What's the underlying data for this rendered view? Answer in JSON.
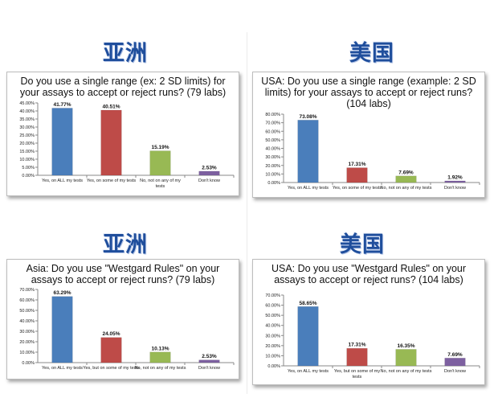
{
  "panels": [
    {
      "heading": "亚洲",
      "chart_title": "Do you use a single range (ex: 2 SD limits) for your assays to accept or reject runs? (79 labs)"
    },
    {
      "heading": "美国",
      "chart_title": "USA: Do you use a single range (example: 2 SD limits) for your assays to accept or reject runs? (104 labs)"
    },
    {
      "heading": "亚洲",
      "chart_title": "Asia: Do you use \"Westgard Rules\" on your assays to accept or reject runs? (79 labs)"
    },
    {
      "heading": "美国",
      "chart_title": "USA: Do you use \"Westgard Rules\" on your assays to accept or reject runs? (104 labs)"
    }
  ],
  "chart_data": [
    {
      "type": "bar",
      "title": "Do you use a single range (ex: 2 SD limits) for your assays to accept or reject runs? (79 labs)",
      "categories": [
        "Yes, on ALL my tests",
        "Yes, on some of my tests",
        "No, not on any of my tests",
        "Don't know"
      ],
      "values": [
        41.77,
        40.51,
        15.19,
        2.53
      ],
      "value_labels": [
        "41.77%",
        "40.51%",
        "15.19%",
        "2.53%"
      ],
      "ylim": [
        0,
        45
      ],
      "yticks": [
        "0.00%",
        "5.00%",
        "10.00%",
        "15.00%",
        "20.00%",
        "25.00%",
        "30.00%",
        "35.00%",
        "40.00%",
        "45.00%"
      ],
      "colors": [
        "#4a7ebb",
        "#be4b48",
        "#98b954",
        "#7d60a0"
      ],
      "grid": false,
      "legend": "none"
    },
    {
      "type": "bar",
      "title": "USA: Do you use a single range (example: 2 SD limits) for your assays to accept or reject runs? (104 labs)",
      "categories": [
        "Yes, on ALL my tests",
        "Yes, on some of my tests",
        "No, not on any of my tests",
        "Don't know"
      ],
      "values": [
        73.08,
        17.31,
        7.69,
        1.92
      ],
      "value_labels": [
        "73.08%",
        "17.31%",
        "7.69%",
        "1.92%"
      ],
      "ylim": [
        0,
        80
      ],
      "yticks": [
        "0.00%",
        "10.00%",
        "20.00%",
        "30.00%",
        "40.00%",
        "50.00%",
        "60.00%",
        "70.00%",
        "80.00%"
      ],
      "colors": [
        "#4a7ebb",
        "#be4b48",
        "#98b954",
        "#7d60a0"
      ],
      "grid": false,
      "legend": "none"
    },
    {
      "type": "bar",
      "title": "Asia: Do you use \"Westgard Rules\" on your assays to accept or reject runs? (79 labs)",
      "categories": [
        "Yes, on ALL my tests",
        "Yes, but on some of my tests",
        "No, not on any of my tests",
        "Don't know"
      ],
      "values": [
        63.29,
        24.05,
        10.13,
        2.53
      ],
      "value_labels": [
        "63.29%",
        "24.05%",
        "10.13%",
        "2.53%"
      ],
      "ylim": [
        0,
        70
      ],
      "yticks": [
        "0.00%",
        "10.00%",
        "20.00%",
        "30.00%",
        "40.00%",
        "50.00%",
        "60.00%",
        "70.00%"
      ],
      "colors": [
        "#4a7ebb",
        "#be4b48",
        "#98b954",
        "#7d60a0"
      ],
      "grid": false,
      "legend": "none"
    },
    {
      "type": "bar",
      "title": "USA: Do you use \"Westgard Rules\" on your assays to accept or reject runs? (104 labs)",
      "categories": [
        "Yes, on ALL my tests",
        "Yes, but on some of my tests",
        "No, not on any of my tests",
        "Don't know"
      ],
      "values": [
        58.65,
        17.31,
        16.35,
        7.69
      ],
      "value_labels": [
        "58.65%",
        "17.31%",
        "16.35%",
        "7.69%"
      ],
      "ylim": [
        0,
        70
      ],
      "yticks": [
        "0.00%",
        "10.00%",
        "20.00%",
        "30.00%",
        "40.00%",
        "50.00%",
        "60.00%",
        "70.00%"
      ],
      "colors": [
        "#4a7ebb",
        "#be4b48",
        "#98b954",
        "#7d60a0"
      ],
      "grid": false,
      "legend": "none"
    }
  ]
}
